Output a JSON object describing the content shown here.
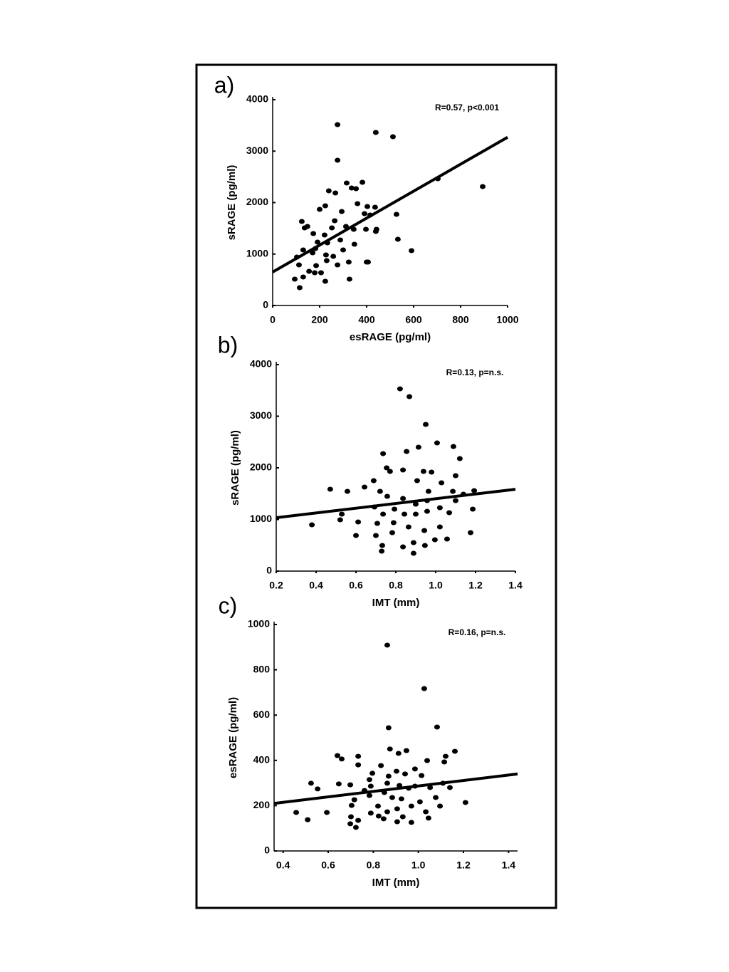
{
  "chart_data": [
    {
      "type": "scatter",
      "panel_label": "a)",
      "annotation": "R=0.57, p<0.001",
      "x_label": "esRAGE (pg/ml)",
      "y_label": "sRAGE (pg/ml)",
      "color": "#000000",
      "x": [
        276,
        439,
        512,
        276,
        703,
        894,
        315,
        382,
        239,
        267,
        336,
        355,
        403,
        436,
        361,
        391,
        527,
        415,
        200,
        224,
        294,
        264,
        136,
        173,
        221,
        252,
        312,
        345,
        397,
        439,
        442,
        533,
        591,
        124,
        148,
        191,
        233,
        288,
        348,
        400,
        406,
        324,
        276,
        227,
        206,
        179,
        155,
        112,
        130,
        94,
        115,
        224,
        327,
        103,
        170,
        182,
        130,
        258,
        300,
        230,
        185
      ],
      "y": [
        3515,
        3363,
        3280,
        2823,
        2464,
        2311,
        2380,
        2394,
        2228,
        2187,
        2283,
        2270,
        1924,
        1910,
        1979,
        1785,
        1771,
        1758,
        1868,
        1938,
        1827,
        1647,
        1509,
        1398,
        1370,
        1509,
        1536,
        1481,
        1481,
        1439,
        1481,
        1287,
        1066,
        1633,
        1536,
        1232,
        1218,
        1273,
        1190,
        844,
        844,
        844,
        789,
        983,
        637,
        637,
        664,
        789,
        554,
        512,
        346,
        471,
        512,
        941,
        1024,
        1107,
        1080,
        955,
        1080,
        872,
        775
      ],
      "fit": {
        "x": [
          0,
          1000
        ],
        "y": [
          650,
          3270
        ]
      },
      "xlim": [
        0,
        1000
      ],
      "ylim": [
        0,
        4000
      ],
      "xticks": [
        0,
        200,
        400,
        600,
        800,
        1000
      ],
      "yticks": [
        0,
        1000,
        2000,
        3000,
        4000
      ]
    },
    {
      "type": "scatter",
      "panel_label": "b)",
      "annotation": "R=0.13, p=n.s.",
      "x_label": "IMT (mm)",
      "y_label": "sRAGE (pg/ml)",
      "color": "#000000",
      "x": [
        0.821,
        0.868,
        0.95,
        1.007,
        1.089,
        1.121,
        0.914,
        0.854,
        0.736,
        0.836,
        0.754,
        0.771,
        0.939,
        0.979,
        1.1,
        0.907,
        1.029,
        0.689,
        0.643,
        0.471,
        0.557,
        0.721,
        0.964,
        1.086,
        1.193,
        1.139,
        0.757,
        0.836,
        0.957,
        1.021,
        1.1,
        0.9,
        0.693,
        0.793,
        0.957,
        1.068,
        1.186,
        0.529,
        0.521,
        0.736,
        0.843,
        0.9,
        0.707,
        0.789,
        0.864,
        0.943,
        1.021,
        0.611,
        0.379,
        0.782,
        0.6,
        1.175,
        0.7,
        0.889,
        0.732,
        0.836,
        0.946,
        0.996,
        1.057,
        0.729,
        0.889
      ],
      "y": [
        3530,
        3379,
        2841,
        2482,
        2413,
        2179,
        2400,
        2317,
        2275,
        1958,
        2000,
        1931,
        1931,
        1917,
        1848,
        1751,
        1710,
        1751,
        1627,
        1586,
        1545,
        1545,
        1545,
        1545,
        1558,
        1489,
        1448,
        1407,
        1365,
        1227,
        1365,
        1296,
        1241,
        1200,
        1158,
        1131,
        1200,
        1103,
        993,
        1103,
        1103,
        1103,
        924,
        938,
        855,
        786,
        855,
        952,
        896,
        745,
        690,
        745,
        690,
        552,
        496,
        469,
        496,
        607,
        621,
        386,
        345
      ],
      "fit": {
        "x": [
          0.2,
          1.4
        ],
        "y": [
          1035,
          1585
        ]
      },
      "xlim": [
        0.2,
        1.4
      ],
      "ylim": [
        0,
        4000
      ],
      "xticks": [
        0.2,
        0.4,
        0.6,
        0.8,
        {
          "value": 1,
          "label": "1.0"
        },
        1.2,
        1.4
      ],
      "yticks": [
        0,
        1000,
        2000,
        3000,
        4000
      ]
    },
    {
      "type": "scatter",
      "panel_label": "c)",
      "annotation": "R=0.16, p=n.s.",
      "x_label": "IMT (mm)",
      "y_label": "esRAGE (pg/ml)",
      "color": "#000000",
      "x": [
        0.862,
        1.026,
        0.868,
        1.083,
        0.874,
        0.947,
        0.733,
        0.641,
        0.66,
        1.162,
        1.121,
        1.039,
        0.912,
        0.733,
        0.834,
        0.985,
        0.903,
        1.115,
        0.796,
        0.868,
        0.941,
        1.014,
        0.783,
        0.862,
        0.916,
        0.524,
        0.647,
        0.698,
        0.789,
        0.985,
        1.109,
        0.553,
        1.052,
        1.14,
        0.761,
        0.849,
        0.957,
        0.783,
        0.884,
        0.716,
        0.925,
        1.007,
        1.077,
        1.209,
        0.704,
        0.821,
        0.906,
        0.969,
        1.096,
        1.033,
        0.458,
        0.594,
        0.789,
        0.862,
        0.824,
        0.931,
        0.701,
        1.045,
        0.509,
        0.846,
        0.969,
        0.733,
        0.698,
        0.723,
        0.906
      ],
      "y": [
        909,
        717,
        544,
        547,
        450,
        443,
        418,
        421,
        406,
        440,
        418,
        399,
        431,
        380,
        377,
        362,
        352,
        393,
        343,
        330,
        340,
        333,
        315,
        299,
        289,
        299,
        296,
        292,
        286,
        286,
        299,
        274,
        280,
        280,
        267,
        258,
        277,
        245,
        236,
        226,
        230,
        217,
        236,
        214,
        201,
        198,
        186,
        198,
        198,
        173,
        170,
        170,
        167,
        173,
        154,
        151,
        151,
        145,
        138,
        142,
        126,
        135,
        120,
        104,
        129
      ],
      "fit": {
        "x": [
          0.36,
          1.44
        ],
        "y": [
          210,
          340
        ]
      },
      "xlim": [
        0.36,
        1.44
      ],
      "ylim": [
        0,
        1000
      ],
      "xticks": [
        0.4,
        0.6,
        0.8,
        {
          "value": 1,
          "label": "1.0"
        },
        1.2,
        1.4
      ],
      "yticks": [
        0,
        200,
        400,
        600,
        800,
        1000
      ]
    }
  ]
}
